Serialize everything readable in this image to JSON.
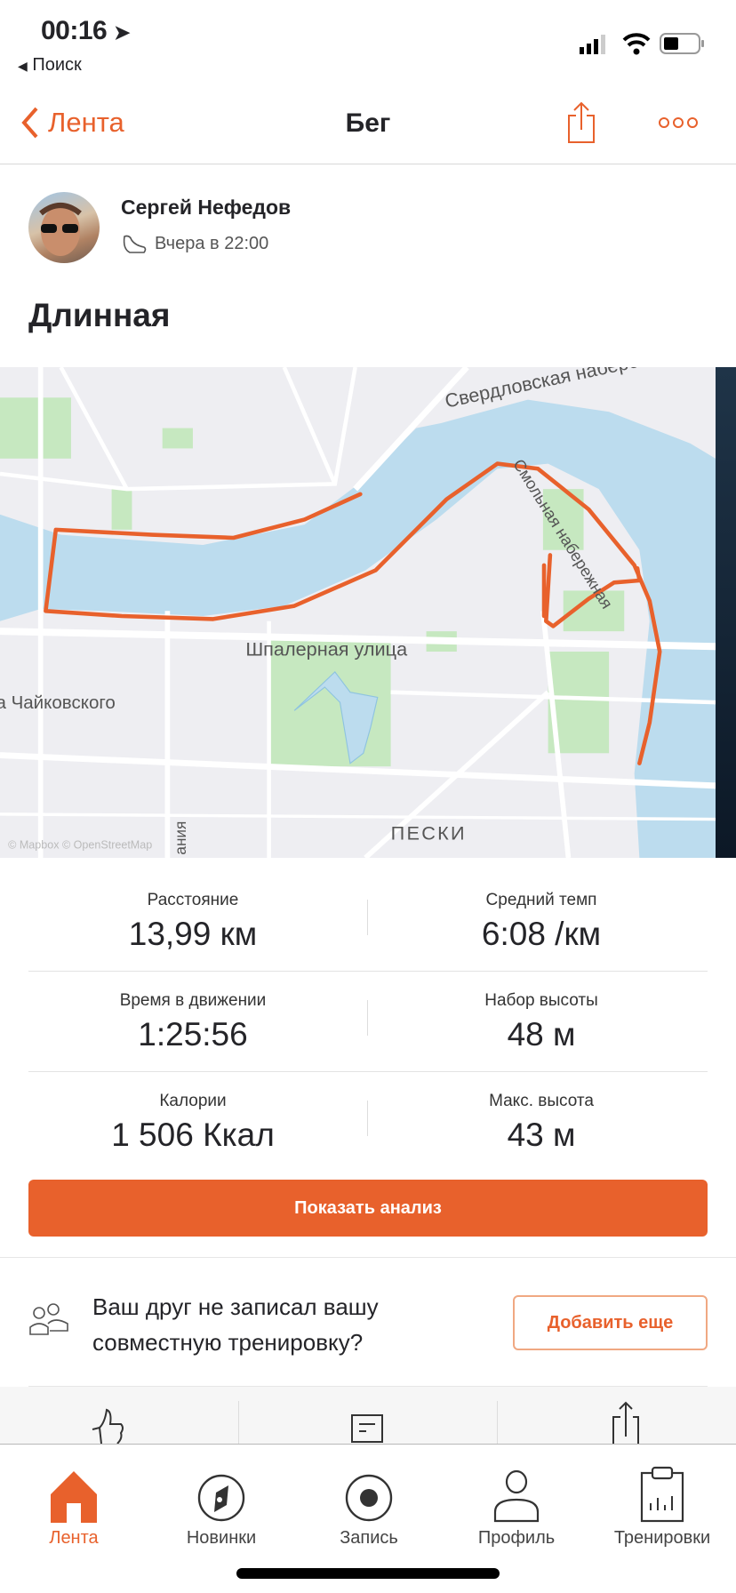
{
  "status_bar": {
    "time": "00:16",
    "back_app": "Поиск"
  },
  "nav": {
    "back_label": "Лента",
    "title": "Бег",
    "share_icon": "share-icon",
    "more_icon": "more-icon"
  },
  "activity": {
    "athlete": "Сергей Нефедов",
    "when": "Вчера в 22:00",
    "sport_icon": "shoe-icon",
    "title": "Длинная"
  },
  "map": {
    "labels": {
      "embankment_1": "Свердловская набережная",
      "embankment_2": "Смольная набережная",
      "street_1": "Шпалерная улица",
      "street_2": "а Чайковского",
      "street_3": "ания",
      "district": "ПЕСКИ",
      "attribution": "© Mapbox © OpenStreetMap"
    },
    "route_color": "#e8612c"
  },
  "stats": [
    {
      "label": "Расстояние",
      "value": "13,99 км"
    },
    {
      "label": "Средний темп",
      "value": "6:08 /км"
    },
    {
      "label": "Время в движении",
      "value": "1:25:56"
    },
    {
      "label": "Набор высоты",
      "value": "48 м"
    },
    {
      "label": "Калории",
      "value": "1 506 Ккал"
    },
    {
      "label": "Макс. высота",
      "value": "43 м"
    }
  ],
  "analysis_button": "Показать анализ",
  "friend_prompt": {
    "line1": "Ваш друг не записал вашу",
    "line2": "совместную тренировку?",
    "button": "Добавить еще"
  },
  "tabs": [
    {
      "label": "Лента",
      "active": true
    },
    {
      "label": "Новинки"
    },
    {
      "label": "Запись"
    },
    {
      "label": "Профиль"
    },
    {
      "label": "Тренировки"
    }
  ],
  "colors": {
    "accent": "#e8612c",
    "water": "#bcdcee",
    "park": "#c6e8c0"
  }
}
